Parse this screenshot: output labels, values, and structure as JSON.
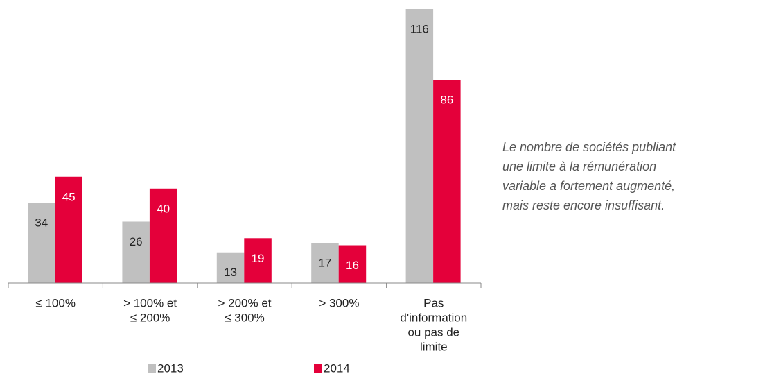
{
  "chart_data": {
    "type": "bar",
    "categories": [
      [
        "≤ 100%"
      ],
      [
        "> 100% et",
        "≤ 200%"
      ],
      [
        "> 200% et",
        "≤ 300%"
      ],
      [
        "> 300%"
      ],
      [
        "Pas",
        "d'information",
        "ou pas de",
        "limite"
      ]
    ],
    "series": [
      {
        "name": "2013",
        "color": "#c0c0c0",
        "values": [
          34,
          26,
          13,
          17,
          116
        ]
      },
      {
        "name": "2014",
        "color": "#e4003a",
        "values": [
          45,
          40,
          19,
          16,
          86
        ]
      }
    ],
    "annotation": [
      "Le nombre de sociétés publiant",
      "une limite à la rémunération",
      "variable a fortement augmenté,",
      "mais reste encore insuffisant."
    ]
  }
}
